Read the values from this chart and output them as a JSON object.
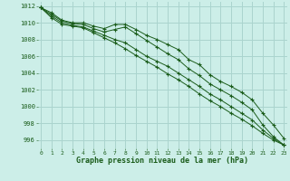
{
  "background_color": "#cceee8",
  "grid_color": "#aad4ce",
  "line_color": "#1a5c1a",
  "marker_color": "#1a5c1a",
  "xlabel": "Graphe pression niveau de la mer (hPa)",
  "xlabel_color": "#1a5c1a",
  "tick_color": "#1a5c1a",
  "ylim": [
    995.0,
    1012.5
  ],
  "xlim": [
    -0.3,
    23.3
  ],
  "yticks": [
    996,
    998,
    1000,
    1002,
    1004,
    1006,
    1008,
    1010,
    1012
  ],
  "xticks": [
    0,
    1,
    2,
    3,
    4,
    5,
    6,
    7,
    8,
    9,
    10,
    11,
    12,
    13,
    14,
    15,
    16,
    17,
    18,
    19,
    20,
    21,
    22,
    23
  ],
  "series": [
    [
      1011.8,
      1011.2,
      1010.3,
      1010.0,
      1010.0,
      1009.6,
      1009.3,
      1009.8,
      1009.8,
      1009.2,
      1008.5,
      1008.0,
      1007.4,
      1006.8,
      1005.6,
      1005.0,
      1003.8,
      1003.0,
      1002.4,
      1001.7,
      1000.8,
      999.2,
      997.8,
      996.2
    ],
    [
      1011.8,
      1011.0,
      1010.2,
      1009.9,
      1009.8,
      1009.3,
      1008.9,
      1009.2,
      1009.5,
      1008.7,
      1007.9,
      1007.1,
      1006.3,
      1005.6,
      1004.5,
      1003.7,
      1002.7,
      1002.0,
      1001.3,
      1000.5,
      999.6,
      997.8,
      996.4,
      995.4
    ],
    [
      1011.8,
      1010.8,
      1010.0,
      1009.7,
      1009.5,
      1009.0,
      1008.5,
      1008.0,
      1007.6,
      1006.8,
      1006.0,
      1005.4,
      1004.8,
      1004.0,
      1003.2,
      1002.4,
      1001.5,
      1000.8,
      1000.0,
      999.2,
      998.4,
      997.2,
      996.2,
      995.4
    ],
    [
      1011.8,
      1010.6,
      1009.8,
      1009.6,
      1009.4,
      1008.8,
      1008.2,
      1007.6,
      1006.9,
      1006.1,
      1005.4,
      1004.7,
      1003.9,
      1003.2,
      1002.4,
      1001.5,
      1000.7,
      1000.0,
      999.2,
      998.5,
      997.7,
      996.8,
      996.0,
      995.4
    ]
  ]
}
